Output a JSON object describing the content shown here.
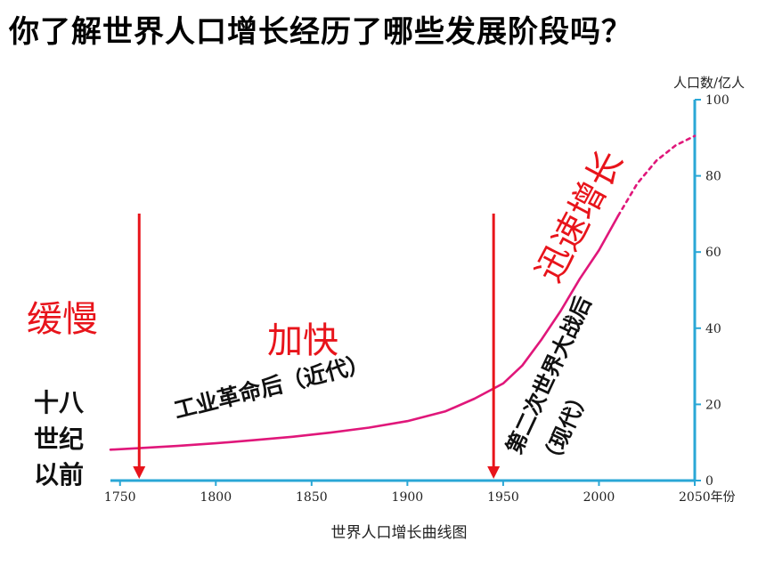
{
  "title": "你了解世界人口增长经历了哪些发展阶段吗？",
  "chart_data": {
    "type": "line",
    "caption": "世界人口增长曲线图",
    "ylabel": "人口数/亿人",
    "xunit": "年份",
    "xlim": [
      1745,
      2050
    ],
    "ylim": [
      0,
      100
    ],
    "x_ticks": [
      1750,
      1800,
      1850,
      1900,
      1950,
      2000,
      2050
    ],
    "y_ticks": [
      0,
      20,
      40,
      60,
      80,
      100
    ],
    "series": [
      {
        "style": "solid",
        "color": "#e0177a",
        "points": [
          [
            1745,
            8.1
          ],
          [
            1760,
            8.5
          ],
          [
            1780,
            9.1
          ],
          [
            1800,
            9.8
          ],
          [
            1820,
            10.6
          ],
          [
            1840,
            11.5
          ],
          [
            1860,
            12.6
          ],
          [
            1880,
            13.9
          ],
          [
            1900,
            15.6
          ],
          [
            1920,
            18.2
          ],
          [
            1935,
            21.5
          ],
          [
            1950,
            25.5
          ],
          [
            1960,
            30.2
          ],
          [
            1970,
            37
          ],
          [
            1980,
            44.5
          ],
          [
            1990,
            53
          ],
          [
            2000,
            60.5
          ],
          [
            2010,
            69.5
          ]
        ]
      },
      {
        "style": "dashed",
        "color": "#e0177a",
        "points": [
          [
            2010,
            69.5
          ],
          [
            2020,
            78
          ],
          [
            2030,
            84
          ],
          [
            2040,
            88
          ],
          [
            2050,
            90.5
          ]
        ]
      }
    ],
    "markers": [
      {
        "year": 1760,
        "color": "#e8141b"
      },
      {
        "year": 1945,
        "color": "#e8141b"
      }
    ]
  },
  "annotations": {
    "slow": "缓慢",
    "accelerate": "加快",
    "rapid": "迅速增长",
    "era1": "十八世纪以前",
    "era1_lines": [
      "十八",
      "世纪",
      "以前"
    ],
    "era2": "工业革命后（近代）",
    "era3_line1": "第二次世界大战后",
    "era3_line2": "（现代）"
  }
}
